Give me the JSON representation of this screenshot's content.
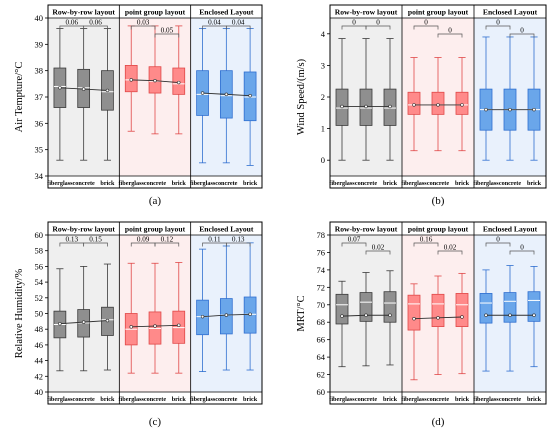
{
  "layout_names": [
    "Row-by-row layout",
    "point group layout",
    "Enclosed Layout"
  ],
  "materials": [
    "fiberglass",
    "concrete",
    "brick"
  ],
  "colors": {
    "gray_fill": "#8f8f8f",
    "gray_stroke": "#3a3a3a",
    "gray_bg": "#efefef",
    "red_fill": "#ff8a8a",
    "red_stroke": "#e04848",
    "red_bg": "#fdeeee",
    "blue_fill": "#6aa6ea",
    "blue_stroke": "#2f6fd0",
    "blue_bg": "#e9f1fc",
    "median": "#ffffff",
    "mean_line": "#303030",
    "frame": "#000000"
  },
  "chart_data": [
    {
      "type": "boxplot",
      "panel_label": "(a)",
      "ylabel": "Air Tempture/°C",
      "ylim": [
        34,
        40
      ],
      "yticks": [
        34,
        35,
        36,
        37,
        38,
        39,
        40
      ],
      "groups": [
        {
          "layout": "Row-by-row layout",
          "color": "gray",
          "boxes": [
            {
              "material": "fiberglass",
              "min": 34.6,
              "q1": 36.6,
              "median": 37.4,
              "q3": 38.1,
              "max": 39.6,
              "mean": 37.35
            },
            {
              "material": "concrete",
              "min": 34.6,
              "q1": 36.6,
              "median": 37.35,
              "q3": 38.05,
              "max": 39.6,
              "mean": 37.3
            },
            {
              "material": "brick",
              "min": 34.6,
              "q1": 36.5,
              "median": 37.2,
              "q3": 38.0,
              "max": 39.6,
              "mean": 37.25
            }
          ],
          "brackets": [
            {
              "from": 0,
              "to": 1,
              "label": "0.06",
              "level": 0
            },
            {
              "from": 1,
              "to": 2,
              "label": "0.06",
              "level": 0
            }
          ]
        },
        {
          "layout": "point group layout",
          "color": "red",
          "boxes": [
            {
              "material": "fiberglass",
              "min": 35.7,
              "q1": 37.2,
              "median": 37.65,
              "q3": 38.2,
              "max": 39.7,
              "mean": 37.65
            },
            {
              "material": "concrete",
              "min": 35.6,
              "q1": 37.15,
              "median": 37.6,
              "q3": 38.15,
              "max": 39.7,
              "mean": 37.62
            },
            {
              "material": "brick",
              "min": 35.6,
              "q1": 37.1,
              "median": 37.5,
              "q3": 38.1,
              "max": 39.7,
              "mean": 37.55
            }
          ],
          "brackets": [
            {
              "from": 0,
              "to": 1,
              "label": "0.03",
              "level": 0
            },
            {
              "from": 1,
              "to": 2,
              "label": "0.05",
              "level": 1
            }
          ]
        },
        {
          "layout": "Enclosed Layout",
          "color": "blue",
          "boxes": [
            {
              "material": "fiberglass",
              "min": 34.5,
              "q1": 36.3,
              "median": 37.1,
              "q3": 38.0,
              "max": 39.6,
              "mean": 37.15
            },
            {
              "material": "concrete",
              "min": 34.5,
              "q1": 36.2,
              "median": 37.05,
              "q3": 38.0,
              "max": 39.6,
              "mean": 37.1
            },
            {
              "material": "brick",
              "min": 34.4,
              "q1": 36.1,
              "median": 37.0,
              "q3": 37.95,
              "max": 39.6,
              "mean": 37.05
            }
          ],
          "brackets": [
            {
              "from": 0,
              "to": 1,
              "label": "0.04",
              "level": 0
            },
            {
              "from": 1,
              "to": 2,
              "label": "0.04",
              "level": 0
            }
          ]
        }
      ]
    },
    {
      "type": "boxplot",
      "panel_label": "(b)",
      "ylabel": "Wind Speed/(m/s)",
      "ylim": [
        -0.5,
        4.5
      ],
      "yticks": [
        0,
        1,
        2,
        3,
        4
      ],
      "groups": [
        {
          "layout": "Row-by-row layout",
          "color": "gray",
          "boxes": [
            {
              "material": "fiberglass",
              "min": 0.0,
              "q1": 1.1,
              "median": 1.65,
              "q3": 2.25,
              "max": 3.85,
              "mean": 1.7
            },
            {
              "material": "concrete",
              "min": 0.0,
              "q1": 1.1,
              "median": 1.65,
              "q3": 2.25,
              "max": 3.85,
              "mean": 1.7
            },
            {
              "material": "brick",
              "min": 0.0,
              "q1": 1.1,
              "median": 1.65,
              "q3": 2.25,
              "max": 3.85,
              "mean": 1.7
            }
          ],
          "brackets": [
            {
              "from": 0,
              "to": 1,
              "label": "0",
              "level": 0
            },
            {
              "from": 1,
              "to": 2,
              "label": "0",
              "level": 0
            }
          ]
        },
        {
          "layout": "point group layout",
          "color": "red",
          "boxes": [
            {
              "material": "fiberglass",
              "min": 0.3,
              "q1": 1.45,
              "median": 1.75,
              "q3": 2.15,
              "max": 3.25,
              "mean": 1.75
            },
            {
              "material": "concrete",
              "min": 0.3,
              "q1": 1.45,
              "median": 1.75,
              "q3": 2.15,
              "max": 3.25,
              "mean": 1.75
            },
            {
              "material": "brick",
              "min": 0.3,
              "q1": 1.45,
              "median": 1.75,
              "q3": 2.15,
              "max": 3.25,
              "mean": 1.75
            }
          ],
          "brackets": [
            {
              "from": 0,
              "to": 1,
              "label": "0",
              "level": 0
            },
            {
              "from": 1,
              "to": 2,
              "label": "0",
              "level": 1
            }
          ]
        },
        {
          "layout": "Enclosed Layout",
          "color": "blue",
          "boxes": [
            {
              "material": "fiberglass",
              "min": 0.0,
              "q1": 0.95,
              "median": 1.6,
              "q3": 2.25,
              "max": 3.9,
              "mean": 1.6
            },
            {
              "material": "concrete",
              "min": 0.0,
              "q1": 0.95,
              "median": 1.6,
              "q3": 2.25,
              "max": 3.9,
              "mean": 1.6
            },
            {
              "material": "brick",
              "min": 0.0,
              "q1": 0.95,
              "median": 1.6,
              "q3": 2.25,
              "max": 3.9,
              "mean": 1.6
            }
          ],
          "brackets": [
            {
              "from": 0,
              "to": 1,
              "label": "0",
              "level": 0
            },
            {
              "from": 1,
              "to": 2,
              "label": "0",
              "level": 1
            }
          ]
        }
      ]
    },
    {
      "type": "boxplot",
      "panel_label": "(c)",
      "ylabel": "Relative Humidity/%",
      "ylim": [
        40,
        60
      ],
      "yticks": [
        40,
        42,
        44,
        46,
        48,
        50,
        52,
        54,
        56,
        58,
        60
      ],
      "groups": [
        {
          "layout": "Row-by-row layout",
          "color": "gray",
          "boxes": [
            {
              "material": "fiberglass",
              "min": 42.7,
              "q1": 46.9,
              "median": 48.6,
              "q3": 50.3,
              "max": 55.7,
              "mean": 48.7
            },
            {
              "material": "concrete",
              "min": 42.7,
              "q1": 47.0,
              "median": 48.8,
              "q3": 50.5,
              "max": 56.0,
              "mean": 48.9
            },
            {
              "material": "brick",
              "min": 42.8,
              "q1": 47.2,
              "median": 49.2,
              "q3": 50.8,
              "max": 56.3,
              "mean": 49.1
            }
          ],
          "brackets": [
            {
              "from": 0,
              "to": 1,
              "label": "0.13",
              "level": 0
            },
            {
              "from": 1,
              "to": 2,
              "label": "0.15",
              "level": 0
            }
          ]
        },
        {
          "layout": "point group layout",
          "color": "red",
          "boxes": [
            {
              "material": "fiberglass",
              "min": 42.4,
              "q1": 46.0,
              "median": 48.0,
              "q3": 50.0,
              "max": 56.4,
              "mean": 48.3
            },
            {
              "material": "concrete",
              "min": 42.4,
              "q1": 46.1,
              "median": 48.1,
              "q3": 50.2,
              "max": 56.4,
              "mean": 48.4
            },
            {
              "material": "brick",
              "min": 42.4,
              "q1": 46.2,
              "median": 48.2,
              "q3": 50.3,
              "max": 56.5,
              "mean": 48.5
            }
          ],
          "brackets": [
            {
              "from": 0,
              "to": 1,
              "label": "0.09",
              "level": 0
            },
            {
              "from": 1,
              "to": 2,
              "label": "0.12",
              "level": 0
            }
          ]
        },
        {
          "layout": "Enclosed Layout",
          "color": "blue",
          "boxes": [
            {
              "material": "fiberglass",
              "min": 42.6,
              "q1": 47.3,
              "median": 49.6,
              "q3": 51.7,
              "max": 58.2,
              "mean": 49.6
            },
            {
              "material": "concrete",
              "min": 42.8,
              "q1": 47.4,
              "median": 49.8,
              "q3": 51.9,
              "max": 58.6,
              "mean": 49.8
            },
            {
              "material": "brick",
              "min": 42.8,
              "q1": 47.5,
              "median": 49.9,
              "q3": 52.1,
              "max": 59.0,
              "mean": 49.9
            }
          ],
          "brackets": [
            {
              "from": 0,
              "to": 1,
              "label": "0.11",
              "level": 0
            },
            {
              "from": 1,
              "to": 2,
              "label": "0.13",
              "level": 0
            }
          ]
        }
      ]
    },
    {
      "type": "boxplot",
      "panel_label": "(d)",
      "ylabel": "MRT/°C",
      "ylim": [
        60,
        78
      ],
      "yticks": [
        60,
        62,
        64,
        66,
        68,
        70,
        72,
        74,
        76,
        78
      ],
      "groups": [
        {
          "layout": "Row-by-row layout",
          "color": "gray",
          "boxes": [
            {
              "material": "fiberglass",
              "min": 62.9,
              "q1": 67.8,
              "median": 70.0,
              "q3": 71.2,
              "max": 72.7,
              "mean": 68.7
            },
            {
              "material": "concrete",
              "min": 63.0,
              "q1": 68.1,
              "median": 70.3,
              "q3": 71.4,
              "max": 73.7,
              "mean": 68.8
            },
            {
              "material": "brick",
              "min": 63.1,
              "q1": 68.0,
              "median": 70.2,
              "q3": 71.5,
              "max": 73.9,
              "mean": 68.8
            }
          ],
          "brackets": [
            {
              "from": 0,
              "to": 1,
              "label": "0.07",
              "level": 0
            },
            {
              "from": 1,
              "to": 2,
              "label": "0.02",
              "level": 1
            }
          ]
        },
        {
          "layout": "point group layout",
          "color": "red",
          "boxes": [
            {
              "material": "fiberglass",
              "min": 61.4,
              "q1": 67.1,
              "median": 70.1,
              "q3": 71.1,
              "max": 72.4,
              "mean": 68.4
            },
            {
              "material": "concrete",
              "min": 62.0,
              "q1": 67.5,
              "median": 70.1,
              "q3": 71.2,
              "max": 73.3,
              "mean": 68.5
            },
            {
              "material": "brick",
              "min": 62.1,
              "q1": 67.5,
              "median": 70.0,
              "q3": 71.3,
              "max": 73.6,
              "mean": 68.6
            }
          ],
          "brackets": [
            {
              "from": 0,
              "to": 1,
              "label": "0.16",
              "level": 0
            },
            {
              "from": 1,
              "to": 2,
              "label": "0.02",
              "level": 1
            }
          ]
        },
        {
          "layout": "Enclosed Layout",
          "color": "blue",
          "boxes": [
            {
              "material": "fiberglass",
              "min": 62.4,
              "q1": 67.9,
              "median": 70.2,
              "q3": 71.3,
              "max": 74.0,
              "mean": 68.8
            },
            {
              "material": "concrete",
              "min": 62.4,
              "q1": 68.0,
              "median": 70.4,
              "q3": 71.4,
              "max": 74.5,
              "mean": 68.8
            },
            {
              "material": "brick",
              "min": 62.9,
              "q1": 68.1,
              "median": 70.5,
              "q3": 71.5,
              "max": 74.4,
              "mean": 68.8
            }
          ],
          "brackets": [
            {
              "from": 0,
              "to": 1,
              "label": "0",
              "level": 0
            },
            {
              "from": 1,
              "to": 2,
              "label": "0",
              "level": 1
            }
          ]
        }
      ]
    }
  ]
}
